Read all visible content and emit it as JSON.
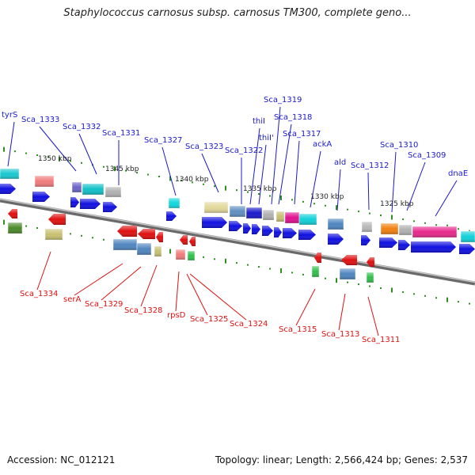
{
  "title": "Staphylococcus carnosus subsp. carnosus TM300, complete geno...",
  "footer": {
    "accession": "Accession: NC_012121",
    "topology": "Topology: linear; Length: 2,566,424 bp; Genes: 2,537"
  },
  "scale_labels": [
    "1350 kbp",
    "1345 kbp",
    "1340 kbp",
    "1335 kbp",
    "1330 kbp",
    "1325 kbp"
  ],
  "upper_gene_labels": [
    "tyrS",
    "Sca_1333",
    "Sca_1332",
    "Sca_1331",
    "Sca_1327",
    "Sca_1323",
    "Sca_1322",
    "thiI",
    "thiI'",
    "Sca_1319",
    "Sca_1318",
    "Sca_1317",
    "ackA",
    "ald",
    "Sca_1312",
    "Sca_1310",
    "Sca_1309",
    "dnaE"
  ],
  "lower_gene_labels": [
    "Sca_1334",
    "serA",
    "Sca_1329",
    "Sca_1328",
    "rpsD",
    "Sca_1325",
    "Sca_1324",
    "Sca_1315",
    "Sca_1313",
    "Sca_1311"
  ],
  "colors": {
    "upper_label": "#1a1acc",
    "lower_label": "#dd1111",
    "backbone": "#808080",
    "tick": "#2f8f1f",
    "forward_gene": "#1010e0",
    "reverse_gene": "#e01010"
  }
}
